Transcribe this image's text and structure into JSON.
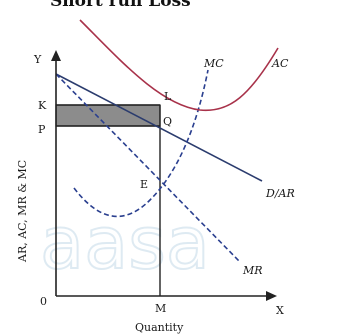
{
  "title": "Short run Loss",
  "axes": {
    "y_axis_symbol": "Y",
    "x_axis_symbol": "X",
    "origin": "0",
    "y_label": "AR, AC, MR & MC",
    "x_label": "Quantity"
  },
  "curves": {
    "mc": "MC",
    "ac": "AC",
    "demand": "D/AR",
    "mr": "MR"
  },
  "points": {
    "k": "K",
    "p": "P",
    "l": "L",
    "q": "Q",
    "e": "E",
    "m": "M"
  },
  "watermark": "aasa",
  "colors": {
    "ac_curve": "#a8324a",
    "mc_curve": "#2a3f8f",
    "demand_curve": "#2b3c6e",
    "mr_curve": "#2a3f8f",
    "loss_area": "#8c8c8c"
  }
}
